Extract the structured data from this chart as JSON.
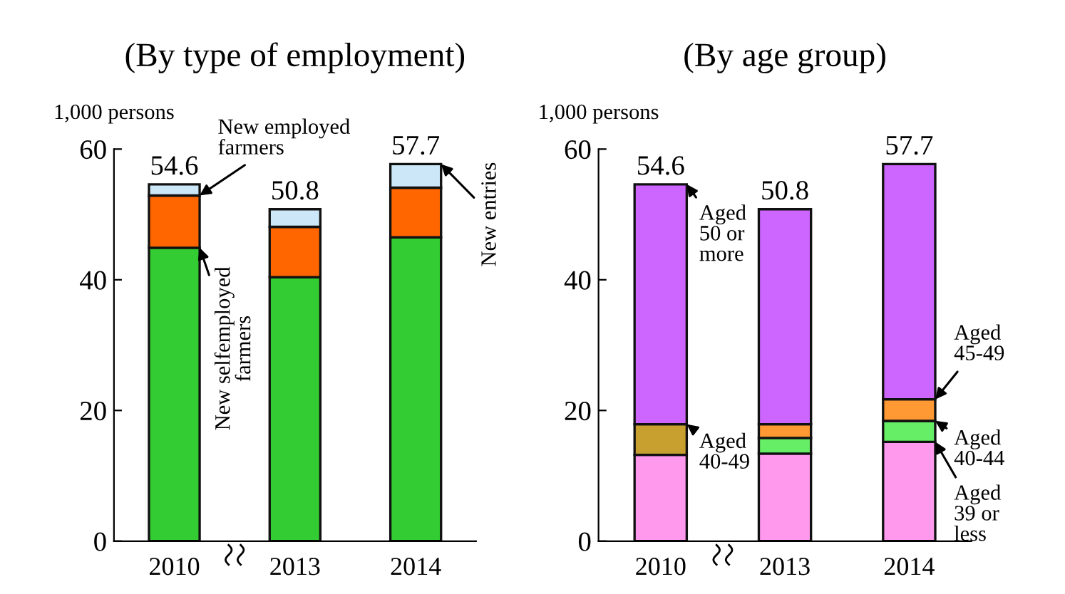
{
  "chart_data": [
    {
      "type": "bar",
      "stacked": true,
      "title": "(By type of employment)",
      "ylabel": "1,000 persons",
      "categories": [
        "2010",
        "2013",
        "2014"
      ],
      "ylim": [
        0,
        60
      ],
      "yticks": [
        0,
        20,
        40,
        60
      ],
      "grid": false,
      "legend": false,
      "series": [
        {
          "color": "#33cc33",
          "values": [
            44.9,
            40.4,
            46.5
          ]
        },
        {
          "color": "#ff6600",
          "values": [
            8.0,
            7.7,
            7.6
          ]
        },
        {
          "color": "#cce8f8",
          "values": [
            1.7,
            2.7,
            3.6
          ]
        }
      ],
      "totals": [
        "54.6",
        "50.8",
        "57.7"
      ],
      "annotations": [
        {
          "text": "New employed\nfarmers",
          "x": "2010",
          "y": 52.9
        },
        {
          "text": "New selfemployed\nfarmers",
          "x": "2010",
          "y": 44.9
        },
        {
          "text": "New entries",
          "x": "2014",
          "y": 57.7
        }
      ]
    },
    {
      "type": "bar",
      "stacked": true,
      "title": "(By age group)",
      "ylabel": "1,000 persons",
      "categories": [
        "2010",
        "2013",
        "2014"
      ],
      "ylim": [
        0,
        60
      ],
      "yticks": [
        0,
        20,
        40,
        60
      ],
      "grid": false,
      "legend": false,
      "series": [
        {
          "color": "#ff99ee",
          "values": [
            13.2,
            13.4,
            15.2
          ]
        },
        {
          "color": "#c8a030",
          "values": [
            4.7,
            null,
            null
          ]
        },
        {
          "color": "#66ee66",
          "values": [
            null,
            2.4,
            3.2
          ]
        },
        {
          "color": "#ff9933",
          "values": [
            null,
            2.1,
            3.3
          ]
        },
        {
          "color": "#cc66ff",
          "values": [
            36.7,
            32.9,
            36.0
          ]
        }
      ],
      "totals": [
        "54.6",
        "50.8",
        "57.7"
      ],
      "annotations": [
        {
          "text": "Aged\n50 or\nmore",
          "x": "2010",
          "y": 54.6
        },
        {
          "text": "Aged\n40-49",
          "x": "2010",
          "y": 17.9
        },
        {
          "text": "Aged\n45-49",
          "x": "2014",
          "y": 21.7
        },
        {
          "text": "Aged\n40-44",
          "x": "2014",
          "y": 18.4
        },
        {
          "text": "Aged\n39 or\nless",
          "x": "2014",
          "y": 15.2
        }
      ]
    }
  ]
}
